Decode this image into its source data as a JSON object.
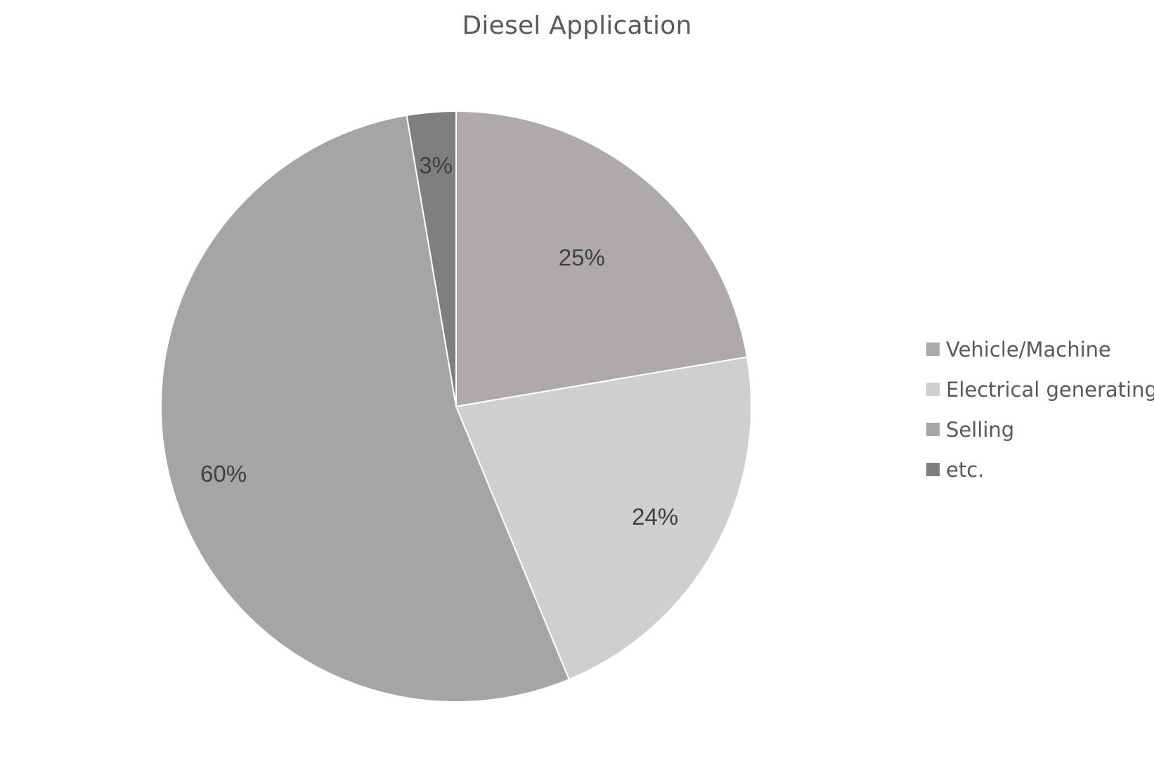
{
  "chart_data": {
    "type": "pie",
    "title": "Diesel Application",
    "categories": [
      "Vehicle/Machine",
      "Electrical generating",
      "Selling",
      "etc."
    ],
    "values": [
      25,
      24,
      60,
      3
    ],
    "data_labels": [
      "25%",
      "24%",
      "60%",
      "3%"
    ],
    "colors": [
      "#aeaaaa",
      "#d0cfd0",
      "#a5a5a5",
      "#7f7f7f"
    ],
    "legend_position": "right"
  }
}
